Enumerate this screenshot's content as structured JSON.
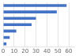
{
  "chart_data": {
    "type": "bar",
    "orientation": "horizontal",
    "categories": [
      null,
      null,
      null,
      null,
      null,
      null,
      null
    ],
    "values": [
      58,
      49,
      30,
      26,
      12,
      6,
      3
    ],
    "color": "#4472C4",
    "xlim": [
      0,
      65
    ],
    "xticks": [
      0,
      10,
      20,
      30,
      40,
      50,
      60
    ],
    "grid": true,
    "tick_labels": "x"
  }
}
